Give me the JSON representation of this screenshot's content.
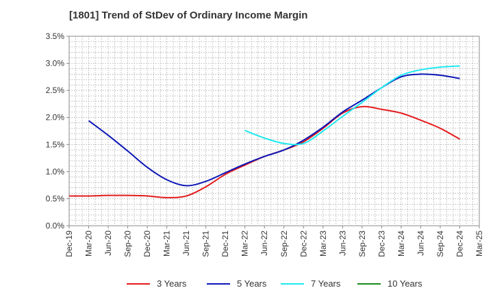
{
  "chart_data": {
    "type": "line",
    "title": "[1801]  Trend of StDev of Ordinary Income Margin",
    "xlabel": "",
    "ylabel": "",
    "ylim": [
      0,
      3.5
    ],
    "yticks": [
      "0.0%",
      "0.5%",
      "1.0%",
      "1.5%",
      "2.0%",
      "2.5%",
      "3.0%",
      "3.5%"
    ],
    "xticks": [
      "Dec-19",
      "Mar-20",
      "Jun-20",
      "Sep-20",
      "Dec-20",
      "Mar-21",
      "Jun-21",
      "Sep-21",
      "Dec-21",
      "Mar-22",
      "Jun-22",
      "Sep-22",
      "Dec-22",
      "Mar-23",
      "Jun-23",
      "Sep-23",
      "Dec-23",
      "Mar-24",
      "Jun-24",
      "Sep-24",
      "Dec-24",
      "Mar-25"
    ],
    "grid": true,
    "legend_position": "bottom",
    "series": [
      {
        "name": "3 Years",
        "color": "#e41a1c",
        "x": [
          "Dec-19",
          "Mar-20",
          "Jun-20",
          "Sep-20",
          "Dec-20",
          "Mar-21",
          "Jun-21",
          "Sep-21",
          "Dec-21",
          "Mar-22",
          "Jun-22",
          "Sep-22",
          "Dec-22",
          "Mar-23",
          "Jun-23",
          "Sep-23",
          "Dec-23",
          "Mar-24",
          "Jun-24",
          "Sep-24",
          "Dec-24"
        ],
        "values": [
          0.55,
          0.55,
          0.56,
          0.56,
          0.55,
          0.52,
          0.55,
          0.72,
          0.95,
          1.12,
          1.28,
          1.4,
          1.55,
          1.8,
          2.08,
          2.2,
          2.15,
          2.08,
          1.95,
          1.8,
          1.6
        ]
      },
      {
        "name": "5 Years",
        "color": "#0b16b6",
        "x": [
          "Mar-20",
          "Jun-20",
          "Sep-20",
          "Dec-20",
          "Mar-21",
          "Jun-21",
          "Sep-21",
          "Dec-21",
          "Mar-22",
          "Jun-22",
          "Sep-22",
          "Dec-22",
          "Mar-23",
          "Jun-23",
          "Sep-23",
          "Dec-23",
          "Mar-24",
          "Jun-24",
          "Sep-24",
          "Dec-24"
        ],
        "values": [
          1.94,
          1.67,
          1.38,
          1.08,
          0.85,
          0.74,
          0.82,
          0.98,
          1.14,
          1.28,
          1.4,
          1.58,
          1.82,
          2.1,
          2.32,
          2.55,
          2.75,
          2.8,
          2.78,
          2.72
        ]
      },
      {
        "name": "7 Years",
        "color": "#1de9f0",
        "x": [
          "Mar-22",
          "Jun-22",
          "Sep-22",
          "Dec-22",
          "Mar-23",
          "Jun-23",
          "Sep-23",
          "Dec-23",
          "Mar-24",
          "Jun-24",
          "Sep-24",
          "Dec-24"
        ],
        "values": [
          1.76,
          1.62,
          1.52,
          1.52,
          1.75,
          2.02,
          2.28,
          2.55,
          2.78,
          2.88,
          2.93,
          2.95
        ]
      },
      {
        "name": "10 Years",
        "color": "#1a8a1a",
        "x": [],
        "values": []
      }
    ]
  }
}
